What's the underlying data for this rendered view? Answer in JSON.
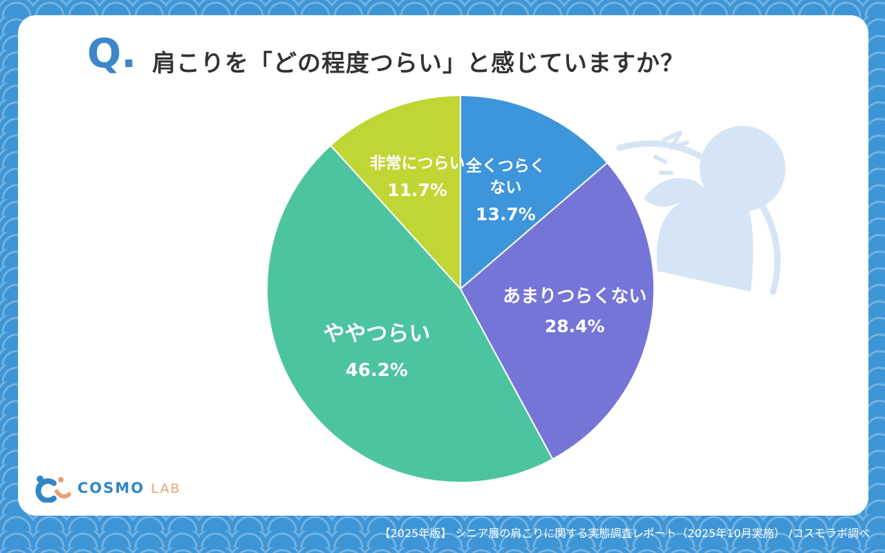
{
  "q_mark": "Q.",
  "title": "肩こりを「どの程度つらい」と感じていますか？",
  "logo": {
    "main": "COSMO",
    "sub": "LAB"
  },
  "footer": "【2025年版】 シニア層の肩こりに関する実態調査レポート（2025年10月実施） /コスモラボ調べ",
  "icon": "shoulder-pain-person-icon",
  "chart_data": {
    "type": "pie",
    "title": "肩こりを「どの程度つらい」と感じていますか？",
    "start": "12 o'clock, clockwise",
    "slices": [
      {
        "label_lines": [
          "全くつらく",
          "ない"
        ],
        "value": 13.7,
        "display": "13.7%",
        "color": "#3d95dc"
      },
      {
        "label_lines": [
          "あまりつらくない"
        ],
        "value": 28.4,
        "display": "28.4%",
        "color": "#7575d8"
      },
      {
        "label_lines": [
          "ややつらい"
        ],
        "value": 46.2,
        "display": "46.2%",
        "color": "#4dc4a0"
      },
      {
        "label_lines": [
          "非常につらい"
        ],
        "value": 11.7,
        "display": "11.7%",
        "color": "#bfd634"
      }
    ]
  }
}
